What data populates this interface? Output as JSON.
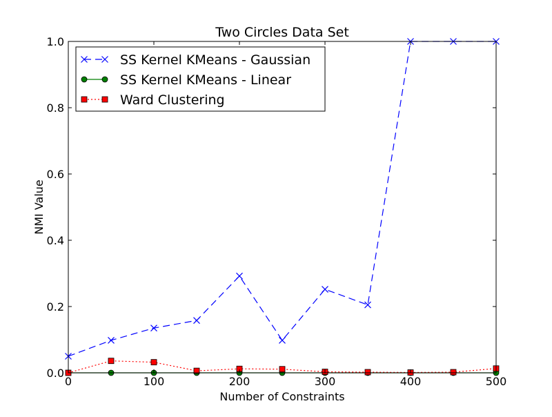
{
  "chart_data": {
    "type": "line",
    "title": "Two Circles Data Set",
    "xlabel": "Number of Constraints",
    "ylabel": "NMI Value",
    "xlim": [
      0,
      500
    ],
    "ylim": [
      0,
      1.0
    ],
    "xticks": [
      "0",
      "100",
      "200",
      "300",
      "400",
      "500"
    ],
    "yticks": [
      "0.0",
      "0.2",
      "0.4",
      "0.6",
      "0.8",
      "1.0"
    ],
    "grid": false,
    "legend_position": "top-left",
    "x": [
      0,
      50,
      100,
      150,
      200,
      250,
      300,
      350,
      400,
      450,
      500
    ],
    "series": [
      {
        "name": "SS Kernel KMeans - Gaussian",
        "color": "#0000ff",
        "linestyle": "dashed",
        "marker": "x",
        "values": [
          0.05,
          0.098,
          0.135,
          0.158,
          0.292,
          0.098,
          0.252,
          0.205,
          1.0,
          1.0,
          1.0
        ]
      },
      {
        "name": "SS Kernel KMeans - Linear",
        "color": "#008000",
        "linestyle": "solid",
        "marker": "circle",
        "values": [
          0.0,
          0.0,
          0.0,
          0.0,
          0.0,
          0.0,
          0.0,
          0.0,
          0.0,
          0.0,
          0.0
        ]
      },
      {
        "name": "Ward Clustering",
        "color": "#ff0000",
        "linestyle": "dotted",
        "marker": "square",
        "values": [
          0.0,
          0.036,
          0.032,
          0.006,
          0.012,
          0.011,
          0.003,
          0.002,
          0.001,
          0.002,
          0.013
        ]
      }
    ]
  }
}
